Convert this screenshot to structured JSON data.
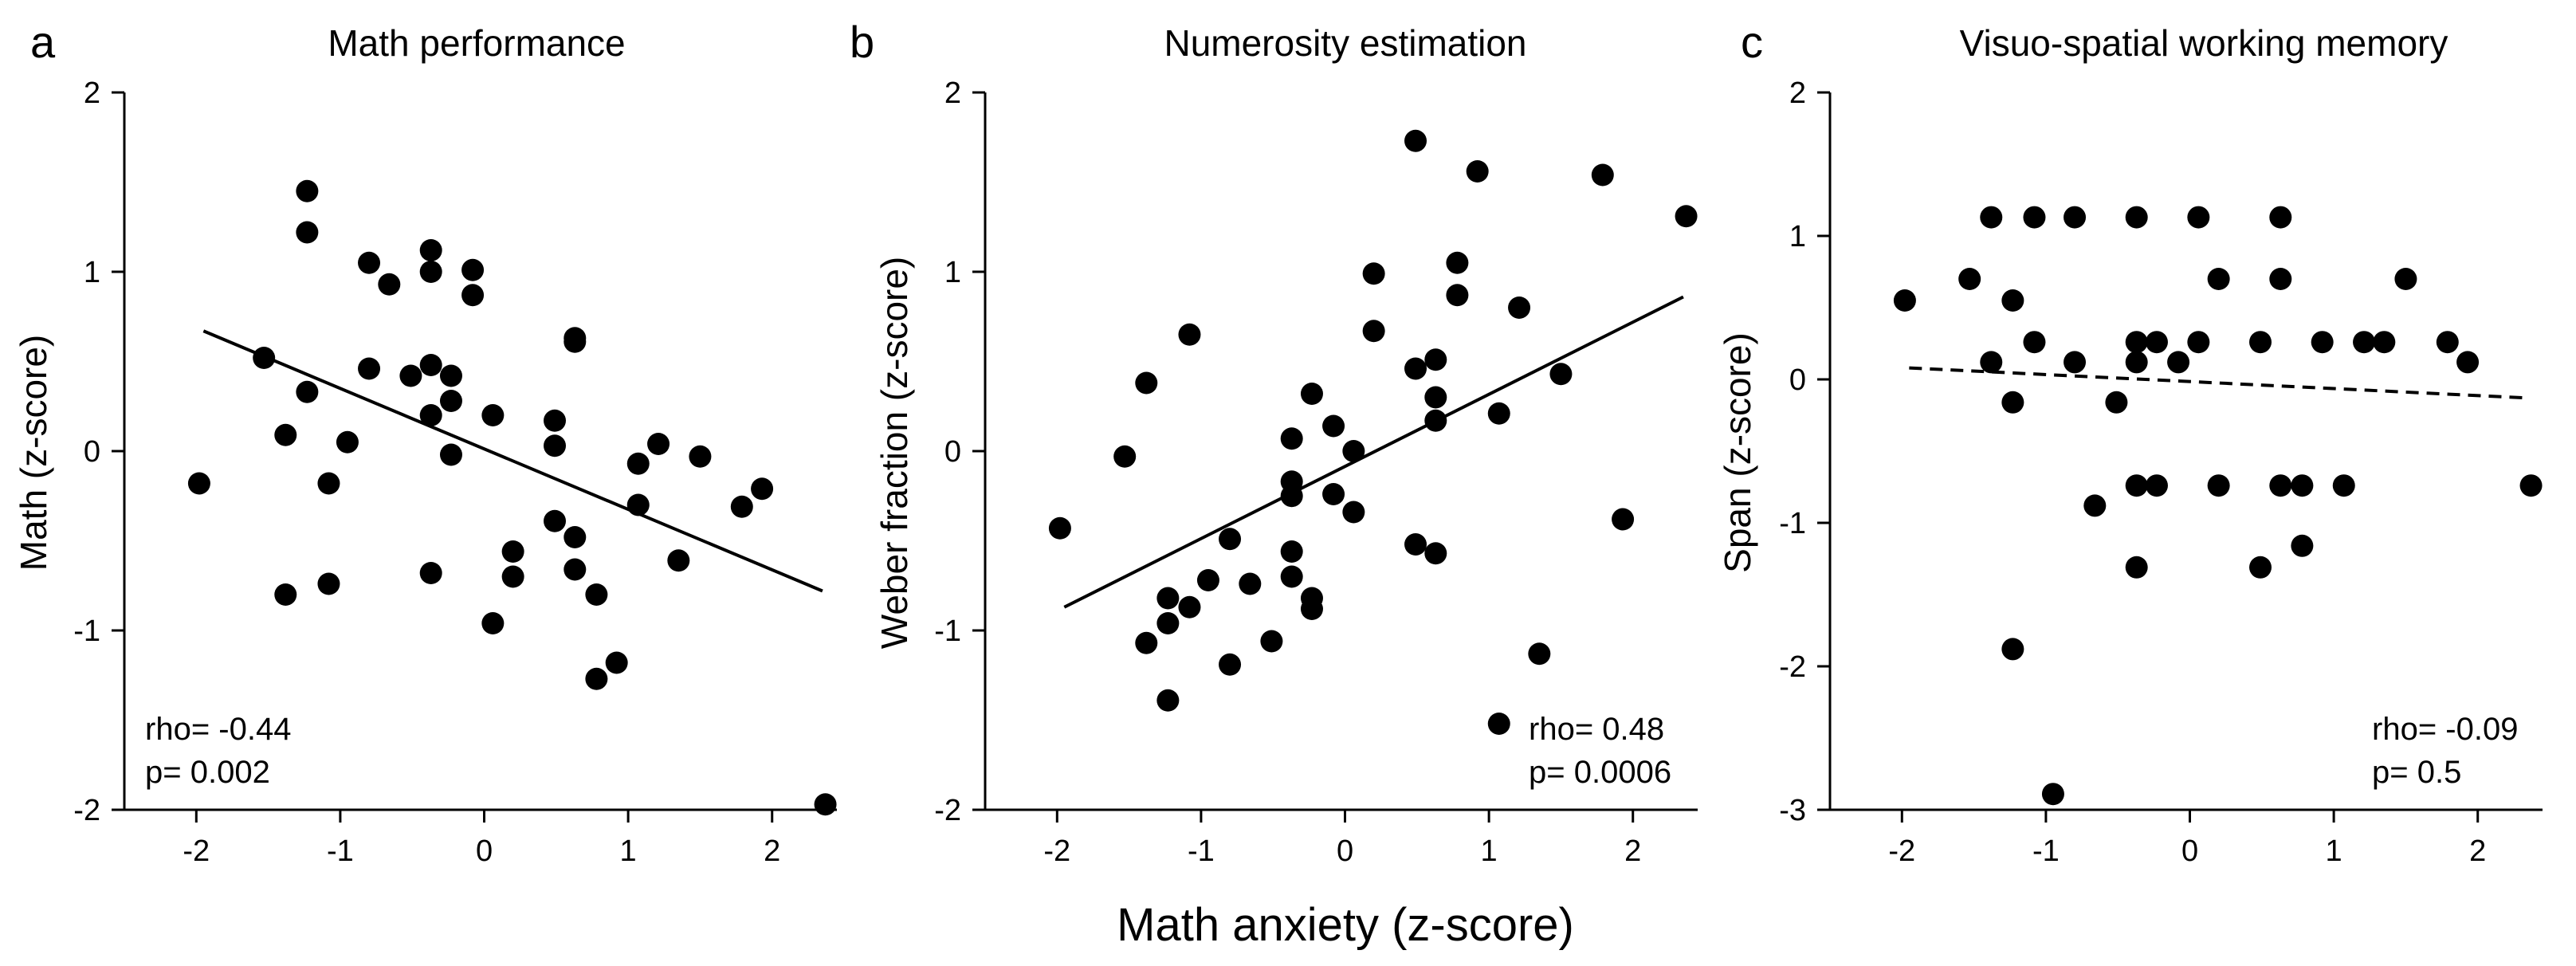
{
  "figure": {
    "xlabel": "Math anxiety (z-score)"
  },
  "chart_data": [
    {
      "type": "scatter",
      "letter": "a",
      "title": "Math performance",
      "xlabel": "Math anxiety (z-score)",
      "ylabel": "Math (z-score)",
      "xlim": [
        -2.5,
        2.45
      ],
      "ylim": [
        -2,
        2
      ],
      "xticks": [
        -2,
        -1,
        0,
        1,
        2
      ],
      "xtick_labels": [
        "-2",
        "-1",
        "0",
        "1",
        "2"
      ],
      "yticks": [
        -2,
        -1,
        0,
        1,
        2
      ],
      "ytick_labels": [
        "-2",
        "-1",
        "0",
        "1",
        "2"
      ],
      "fit": {
        "style": "solid",
        "x": [
          -1.95,
          2.35
        ],
        "y": [
          0.67,
          -0.78
        ]
      },
      "stats": {
        "rho": "rho= -0.44",
        "p": "p= 0.002"
      },
      "stats_position": "bottom-left",
      "points": [
        [
          -1.98,
          -0.18
        ],
        [
          -1.53,
          0.52
        ],
        [
          -1.38,
          0.09
        ],
        [
          -1.38,
          -0.8
        ],
        [
          -1.23,
          1.45
        ],
        [
          -1.23,
          1.22
        ],
        [
          -1.23,
          0.33
        ],
        [
          -1.08,
          -0.18
        ],
        [
          -1.08,
          -0.74
        ],
        [
          -0.95,
          0.05
        ],
        [
          -0.8,
          1.05
        ],
        [
          -0.8,
          0.46
        ],
        [
          -0.66,
          0.93
        ],
        [
          -0.51,
          0.42
        ],
        [
          -0.37,
          1.12
        ],
        [
          -0.37,
          1.0
        ],
        [
          -0.37,
          0.48
        ],
        [
          -0.37,
          0.2
        ],
        [
          -0.37,
          -0.68
        ],
        [
          -0.23,
          0.42
        ],
        [
          -0.23,
          0.28
        ],
        [
          -0.23,
          -0.02
        ],
        [
          -0.08,
          1.01
        ],
        [
          -0.08,
          0.87
        ],
        [
          0.06,
          0.2
        ],
        [
          0.06,
          -0.96
        ],
        [
          0.2,
          -0.56
        ],
        [
          0.2,
          -0.7
        ],
        [
          0.49,
          0.17
        ],
        [
          0.49,
          0.03
        ],
        [
          0.49,
          -0.39
        ],
        [
          0.63,
          0.63
        ],
        [
          0.63,
          0.61
        ],
        [
          0.63,
          -0.48
        ],
        [
          0.63,
          -0.66
        ],
        [
          0.78,
          -1.27
        ],
        [
          0.78,
          -0.8
        ],
        [
          0.92,
          -1.18
        ],
        [
          1.07,
          -0.07
        ],
        [
          1.07,
          -0.3
        ],
        [
          1.21,
          0.04
        ],
        [
          1.35,
          -0.61
        ],
        [
          1.5,
          -0.03
        ],
        [
          1.79,
          -0.31
        ],
        [
          1.93,
          -0.21
        ],
        [
          2.37,
          -1.97
        ]
      ]
    },
    {
      "type": "scatter",
      "letter": "b",
      "title": "Numerosity estimation",
      "xlabel": "Math anxiety (z-score)",
      "ylabel": "Weber fraction (z-score)",
      "xlim": [
        -2.5,
        2.45
      ],
      "ylim": [
        -2,
        2
      ],
      "xticks": [
        -2,
        -1,
        0,
        1,
        2
      ],
      "xtick_labels": [
        "-2",
        "-1",
        "0",
        "1",
        "2"
      ],
      "yticks": [
        -2,
        -1,
        0,
        1,
        2
      ],
      "ytick_labels": [
        "-2",
        "-1",
        "0",
        "1",
        "2"
      ],
      "fit": {
        "style": "solid",
        "x": [
          -1.95,
          2.35
        ],
        "y": [
          -0.87,
          0.86
        ]
      },
      "stats": {
        "rho": "rho= 0.48",
        "p": "p= 0.0006"
      },
      "stats_position": "bottom-right",
      "points": [
        [
          -1.98,
          -0.43
        ],
        [
          -1.53,
          -0.03
        ],
        [
          -1.38,
          0.38
        ],
        [
          -1.38,
          -1.07
        ],
        [
          -1.23,
          -0.82
        ],
        [
          -1.23,
          -0.96
        ],
        [
          -1.23,
          -1.39
        ],
        [
          -1.08,
          0.65
        ],
        [
          -1.08,
          -0.87
        ],
        [
          -0.95,
          -0.72
        ],
        [
          -0.8,
          -0.49
        ],
        [
          -0.8,
          -1.19
        ],
        [
          -0.66,
          -0.74
        ],
        [
          -0.51,
          -1.06
        ],
        [
          -0.37,
          0.07
        ],
        [
          -0.37,
          -0.17
        ],
        [
          -0.37,
          -0.25
        ],
        [
          -0.37,
          -0.56
        ],
        [
          -0.37,
          -0.7
        ],
        [
          -0.23,
          0.32
        ],
        [
          -0.23,
          -0.82
        ],
        [
          -0.23,
          -0.88
        ],
        [
          -0.08,
          0.14
        ],
        [
          -0.08,
          -0.24
        ],
        [
          0.06,
          0.0
        ],
        [
          0.06,
          -0.34
        ],
        [
          0.2,
          0.99
        ],
        [
          0.2,
          0.67
        ],
        [
          0.49,
          1.73
        ],
        [
          0.49,
          0.46
        ],
        [
          0.49,
          -0.52
        ],
        [
          0.63,
          0.51
        ],
        [
          0.63,
          0.3
        ],
        [
          0.63,
          0.17
        ],
        [
          0.63,
          -0.57
        ],
        [
          0.78,
          1.05
        ],
        [
          0.78,
          0.87
        ],
        [
          0.92,
          1.56
        ],
        [
          1.07,
          0.21
        ],
        [
          1.07,
          -1.52
        ],
        [
          1.21,
          0.8
        ],
        [
          1.35,
          -1.13
        ],
        [
          1.5,
          0.43
        ],
        [
          1.79,
          1.54
        ],
        [
          1.93,
          -0.38
        ],
        [
          2.37,
          1.31
        ]
      ]
    },
    {
      "type": "scatter",
      "letter": "c",
      "title": "Visuo-spatial working memory",
      "xlabel": "Math anxiety (z-score)",
      "ylabel": "Span (z-score)",
      "xlim": [
        -2.5,
        2.45
      ],
      "ylim": [
        -3,
        2
      ],
      "xticks": [
        -2,
        -1,
        0,
        1,
        2
      ],
      "xtick_labels": [
        "-2",
        "-1",
        "0",
        "1",
        "2"
      ],
      "yticks": [
        -3,
        -2,
        -1,
        0,
        1,
        2
      ],
      "ytick_labels": [
        "-3",
        "-2",
        "-1",
        "0",
        "1",
        "2"
      ],
      "fit": {
        "style": "dashed",
        "x": [
          -1.95,
          2.35
        ],
        "y": [
          0.08,
          -0.13
        ]
      },
      "stats": {
        "rho": "rho= -0.09",
        "p": "p= 0.5"
      },
      "stats_position": "bottom-right",
      "points": [
        [
          -1.98,
          0.55
        ],
        [
          -1.53,
          0.7
        ],
        [
          -1.38,
          1.13
        ],
        [
          -1.38,
          0.12
        ],
        [
          -1.23,
          0.55
        ],
        [
          -1.23,
          -0.16
        ],
        [
          -1.23,
          -1.88
        ],
        [
          -1.08,
          1.13
        ],
        [
          -1.08,
          0.26
        ],
        [
          -0.95,
          -2.89
        ],
        [
          -0.8,
          1.13
        ],
        [
          -0.8,
          0.12
        ],
        [
          -0.66,
          -0.88
        ],
        [
          -0.51,
          -0.16
        ],
        [
          -0.37,
          1.13
        ],
        [
          -0.37,
          0.26
        ],
        [
          -0.37,
          0.12
        ],
        [
          -0.37,
          -0.74
        ],
        [
          -0.37,
          -1.31
        ],
        [
          -0.23,
          0.26
        ],
        [
          -0.23,
          -0.74
        ],
        [
          -0.08,
          0.12
        ],
        [
          0.06,
          1.13
        ],
        [
          0.06,
          0.26
        ],
        [
          0.2,
          0.7
        ],
        [
          0.2,
          -0.74
        ],
        [
          0.49,
          0.26
        ],
        [
          0.49,
          -1.31
        ],
        [
          0.63,
          1.13
        ],
        [
          0.63,
          0.7
        ],
        [
          0.63,
          -0.74
        ],
        [
          0.78,
          -0.74
        ],
        [
          0.78,
          -1.16
        ],
        [
          0.92,
          0.26
        ],
        [
          1.07,
          -0.74
        ],
        [
          1.21,
          0.26
        ],
        [
          1.35,
          0.26
        ],
        [
          1.5,
          0.7
        ],
        [
          1.79,
          0.26
        ],
        [
          1.93,
          0.12
        ],
        [
          2.37,
          -0.74
        ]
      ]
    }
  ]
}
